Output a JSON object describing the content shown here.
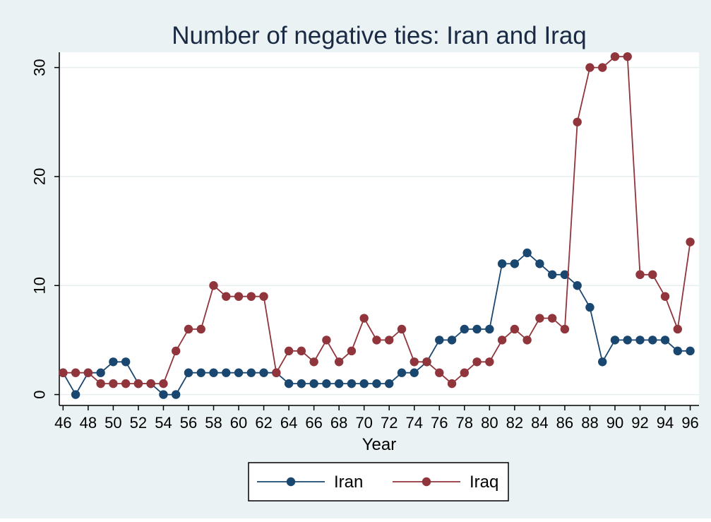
{
  "chart_data": {
    "type": "line",
    "title": "Number of negative ties: Iran and Iraq",
    "xlabel": "Year",
    "ylabel": "",
    "x": [
      46,
      47,
      48,
      49,
      50,
      51,
      52,
      53,
      54,
      55,
      56,
      57,
      58,
      59,
      60,
      61,
      62,
      63,
      64,
      65,
      66,
      67,
      68,
      69,
      70,
      71,
      72,
      73,
      74,
      75,
      76,
      77,
      78,
      79,
      80,
      81,
      82,
      83,
      84,
      85,
      86,
      87,
      88,
      89,
      90,
      91,
      92,
      93,
      94,
      95,
      96
    ],
    "xticks": [
      "46",
      "48",
      "50",
      "52",
      "54",
      "56",
      "58",
      "60",
      "62",
      "64",
      "66",
      "68",
      "70",
      "72",
      "74",
      "76",
      "78",
      "80",
      "82",
      "84",
      "86",
      "88",
      "90",
      "92",
      "94",
      "96"
    ],
    "yticks": [
      "0",
      "10",
      "20",
      "30"
    ],
    "xlim": [
      45.7,
      96.7
    ],
    "ylim": [
      -1,
      31.4
    ],
    "grid": "horizontal",
    "legend_position": "bottom",
    "background": "#eaf2f3",
    "plot_background": "#ffffff",
    "series": [
      {
        "name": "Iran",
        "color": "#1a476f",
        "values": [
          2,
          0,
          2,
          2,
          3,
          3,
          1,
          1,
          0,
          0,
          2,
          2,
          2,
          2,
          2,
          2,
          2,
          2,
          1,
          1,
          1,
          1,
          1,
          1,
          1,
          1,
          1,
          2,
          2,
          3,
          5,
          5,
          6,
          6,
          6,
          12,
          12,
          13,
          12,
          11,
          11,
          10,
          8,
          3,
          5,
          5,
          5,
          5,
          5,
          4,
          4
        ]
      },
      {
        "name": "Iraq",
        "color": "#90353b",
        "values": [
          2,
          2,
          2,
          1,
          1,
          1,
          1,
          1,
          1,
          4,
          6,
          6,
          10,
          9,
          9,
          9,
          9,
          2,
          4,
          4,
          3,
          5,
          3,
          4,
          7,
          5,
          5,
          6,
          3,
          3,
          2,
          1,
          2,
          3,
          3,
          5,
          6,
          5,
          7,
          7,
          6,
          25,
          30,
          30,
          31,
          31,
          11,
          11,
          9,
          6,
          14
        ]
      }
    ]
  }
}
